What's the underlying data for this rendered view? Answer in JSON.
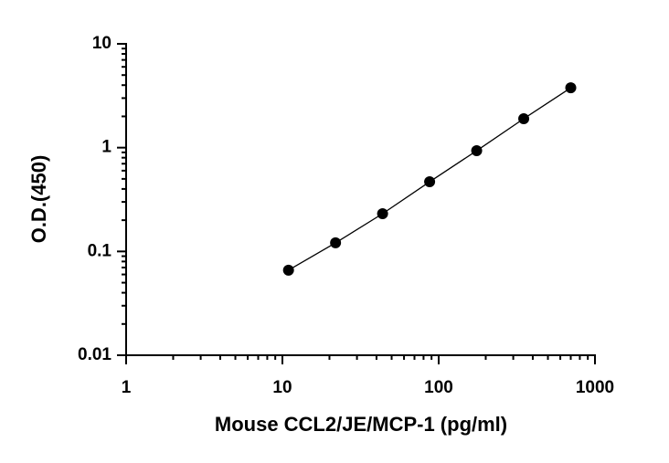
{
  "chart_data": {
    "type": "scatter",
    "xlabel": "Mouse CCL2/JE/MCP-1 (pg/ml)",
    "ylabel": "O.D.(450)",
    "xscale": "log",
    "yscale": "log",
    "xlim": [
      1,
      1000
    ],
    "ylim": [
      0.01,
      10
    ],
    "xticks": [
      1,
      10,
      100,
      1000
    ],
    "yticks": [
      0.01,
      0.1,
      1,
      10
    ],
    "series": [
      {
        "color": "#000000",
        "line": true,
        "x": [
          10.94,
          21.88,
          43.75,
          87.5,
          175,
          350,
          700
        ],
        "values": [
          0.066,
          0.121,
          0.231,
          0.469,
          0.934,
          1.9,
          3.77
        ]
      }
    ]
  }
}
